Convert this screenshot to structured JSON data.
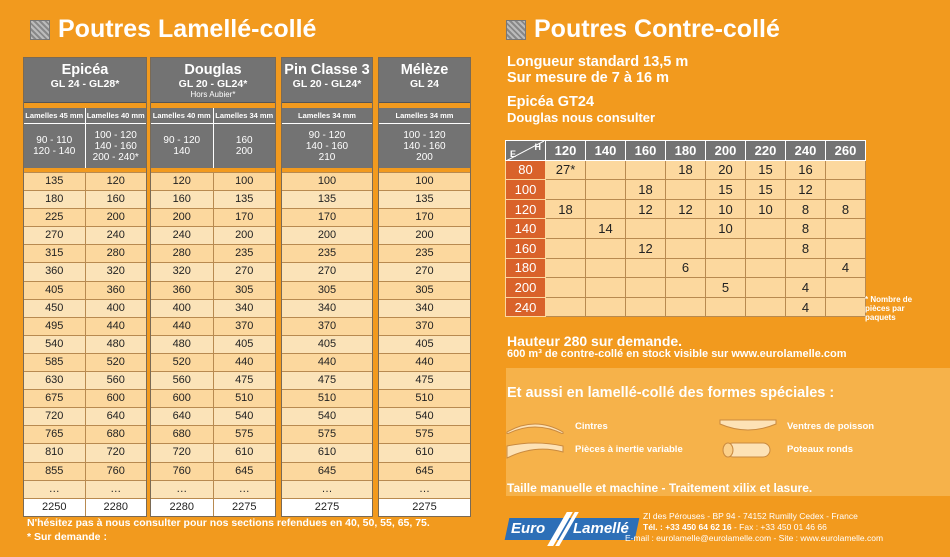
{
  "left": {
    "title": "Poutres Lamellé-collé",
    "tables": [
      {
        "name": "Epicéa",
        "grade": "GL 24 - GL28*",
        "note": "",
        "lamelles": [
          "Lamelles 45 mm",
          "Lamelles 40 mm"
        ],
        "sections": [
          "90 - 110\n120 - 140",
          "100 - 120\n140 - 160\n200 - 240*"
        ],
        "rows": [
          [
            "135",
            "120"
          ],
          [
            "180",
            "160"
          ],
          [
            "225",
            "200"
          ],
          [
            "270",
            "240"
          ],
          [
            "315",
            "280"
          ],
          [
            "360",
            "320"
          ],
          [
            "405",
            "360"
          ],
          [
            "450",
            "400"
          ],
          [
            "495",
            "440"
          ],
          [
            "540",
            "480"
          ],
          [
            "585",
            "520"
          ],
          [
            "630",
            "560"
          ],
          [
            "675",
            "600"
          ],
          [
            "720",
            "640"
          ],
          [
            "765",
            "680"
          ],
          [
            "810",
            "720"
          ],
          [
            "855",
            "760"
          ],
          [
            "…",
            "…"
          ],
          [
            "2250",
            "2280"
          ]
        ]
      },
      {
        "name": "Douglas",
        "grade": "GL 20 - GL24*",
        "note": "Hors Aubier*",
        "lamelles": [
          "Lamelles 40 mm",
          "Lamelles 34 mm"
        ],
        "sections": [
          "90 - 120\n140",
          "160\n200"
        ],
        "rows": [
          [
            "120",
            "100"
          ],
          [
            "160",
            "135"
          ],
          [
            "200",
            "170"
          ],
          [
            "240",
            "200"
          ],
          [
            "280",
            "235"
          ],
          [
            "320",
            "270"
          ],
          [
            "360",
            "305"
          ],
          [
            "400",
            "340"
          ],
          [
            "440",
            "370"
          ],
          [
            "480",
            "405"
          ],
          [
            "520",
            "440"
          ],
          [
            "560",
            "475"
          ],
          [
            "600",
            "510"
          ],
          [
            "640",
            "540"
          ],
          [
            "680",
            "575"
          ],
          [
            "720",
            "610"
          ],
          [
            "760",
            "645"
          ],
          [
            "…",
            "…"
          ],
          [
            "2280",
            "2275"
          ]
        ]
      },
      {
        "name": "Pin Classe 3",
        "grade": "GL 20 - GL24*",
        "note": "",
        "lamelles": [
          "Lamelles 34 mm"
        ],
        "sections": [
          "90 - 120\n140 - 160\n210"
        ],
        "rows": [
          [
            "100"
          ],
          [
            "135"
          ],
          [
            "170"
          ],
          [
            "200"
          ],
          [
            "235"
          ],
          [
            "270"
          ],
          [
            "305"
          ],
          [
            "340"
          ],
          [
            "370"
          ],
          [
            "405"
          ],
          [
            "440"
          ],
          [
            "475"
          ],
          [
            "510"
          ],
          [
            "540"
          ],
          [
            "575"
          ],
          [
            "610"
          ],
          [
            "645"
          ],
          [
            "…"
          ],
          [
            "2275"
          ]
        ]
      },
      {
        "name": "Mélèze",
        "grade": "GL 24",
        "note": "",
        "lamelles": [
          "Lamelles 34 mm"
        ],
        "sections": [
          "100 - 120\n140 - 160\n200"
        ],
        "rows": [
          [
            "100"
          ],
          [
            "135"
          ],
          [
            "170"
          ],
          [
            "200"
          ],
          [
            "235"
          ],
          [
            "270"
          ],
          [
            "305"
          ],
          [
            "340"
          ],
          [
            "370"
          ],
          [
            "405"
          ],
          [
            "440"
          ],
          [
            "475"
          ],
          [
            "510"
          ],
          [
            "540"
          ],
          [
            "575"
          ],
          [
            "610"
          ],
          [
            "645"
          ],
          [
            "…"
          ],
          [
            "2275"
          ]
        ]
      }
    ],
    "footnote1": "N'hésitez pas à nous consulter pour nos sections refendues en 40, 50, 55, 65, 75.",
    "footnote2": "* Sur demande :"
  },
  "right": {
    "title": "Poutres Contre-collé",
    "line1": "Longueur standard 13,5 m",
    "line2": "Sur mesure de 7 à 16 m",
    "line3": "Epicéa GT24",
    "line4": "Douglas nous consulter",
    "corner_e": "E",
    "corner_h": "H",
    "cols": [
      "120",
      "140",
      "160",
      "180",
      "200",
      "220",
      "240",
      "260"
    ],
    "rows": [
      {
        "e": "80",
        "v": [
          "27*",
          "",
          "",
          "18",
          "20",
          "15",
          "16",
          ""
        ]
      },
      {
        "e": "100",
        "v": [
          "",
          "",
          "18",
          "",
          "15",
          "15",
          "12",
          ""
        ]
      },
      {
        "e": "120",
        "v": [
          "18",
          "",
          "12",
          "12",
          "10",
          "10",
          "8",
          "8"
        ]
      },
      {
        "e": "140",
        "v": [
          "",
          "14",
          "",
          "",
          "10",
          "",
          "8",
          ""
        ]
      },
      {
        "e": "160",
        "v": [
          "",
          "",
          "12",
          "",
          "",
          "",
          "8",
          ""
        ]
      },
      {
        "e": "180",
        "v": [
          "",
          "",
          "",
          "6",
          "",
          "",
          "",
          "4"
        ]
      },
      {
        "e": "200",
        "v": [
          "",
          "",
          "",
          "",
          "5",
          "",
          "4",
          ""
        ]
      },
      {
        "e": "240",
        "v": [
          "",
          "",
          "",
          "",
          "",
          "",
          "4",
          ""
        ]
      }
    ],
    "side_note": "* Nombre de\npièces par\npaquets",
    "hauteur": "Hauteur 280 sur demande.",
    "stock": "600 m³ de contre-collé en stock visible sur www.eurolamelle.com",
    "formes_title": "Et aussi en lamellé-collé des formes spéciales :",
    "shapes": [
      "Cintres",
      "Ventres de poisson",
      "Pièces à inertie variable",
      "Poteaux ronds"
    ],
    "taille": "Taille manuelle et machine - Traitement xilix et lasure.",
    "logo": {
      "euro": "Euro",
      "lamelle": "Lamellé"
    },
    "address1": "ZI des Pérouses - BP 94 - 74152 Rumilly Cedex - France",
    "tel_label": "Tél. : +33 450 64 62 16",
    "fax": " - Fax : +33 450 01 46 66",
    "email": "E-mail : eurolamelle@eurolamelle.com - Site : www.eurolamelle.com"
  }
}
